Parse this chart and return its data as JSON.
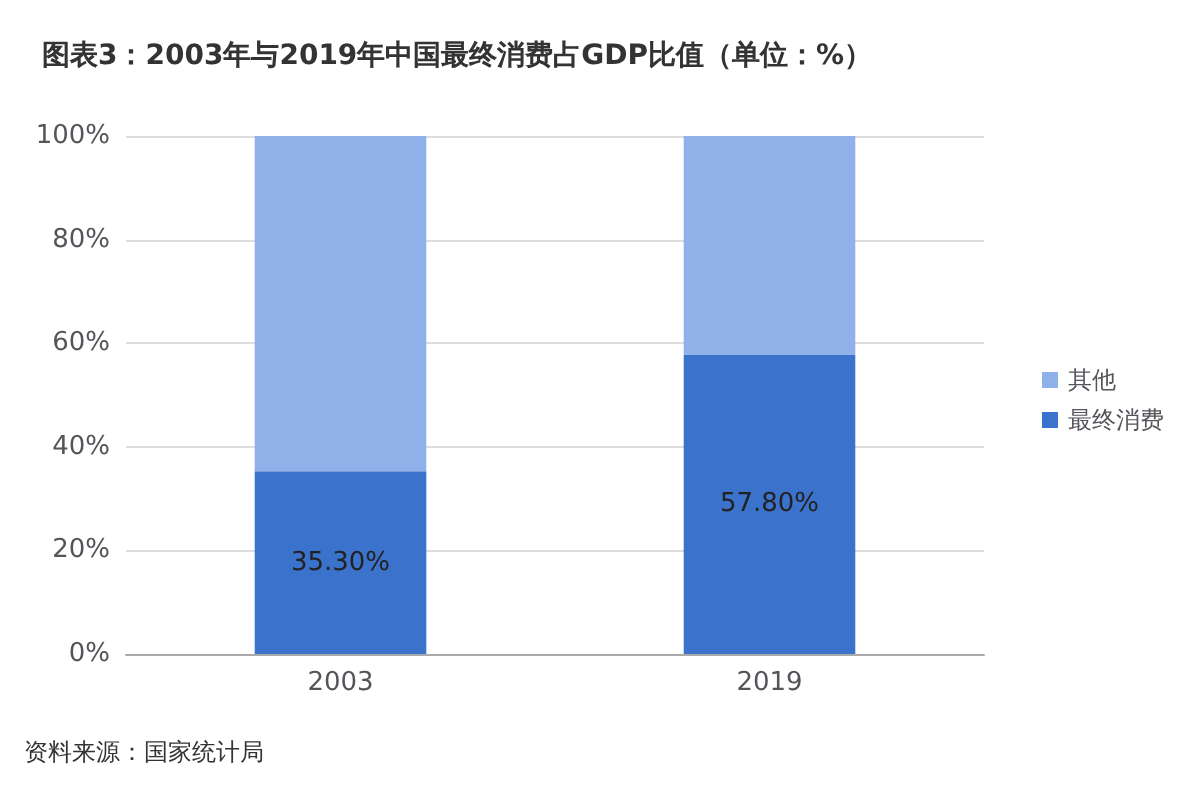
{
  "chart_data": {
    "type": "bar",
    "title": "图表3：2003年与2019年中国最终消费占GDP比值（单位：%）",
    "categories": [
      "2003",
      "2019"
    ],
    "stacked": true,
    "series": [
      {
        "name": "最终消费",
        "color": "#3b73cc",
        "values": [
          35.3,
          57.8
        ],
        "value_labels": [
          "35.30%",
          "57.80%"
        ]
      },
      {
        "name": "其他",
        "color": "#8fb0e8",
        "values": [
          64.7,
          42.2
        ]
      }
    ],
    "ylim": [
      0,
      100
    ],
    "yticks": [
      {
        "value": 0,
        "label": "0%"
      },
      {
        "value": 20,
        "label": "20%"
      },
      {
        "value": 40,
        "label": "40%"
      },
      {
        "value": 60,
        "label": "60%"
      },
      {
        "value": 80,
        "label": "80%"
      },
      {
        "value": 100,
        "label": "100%"
      }
    ],
    "grid": "y",
    "legend": "right",
    "annotations": [
      "资料来源：国家统计局"
    ]
  }
}
